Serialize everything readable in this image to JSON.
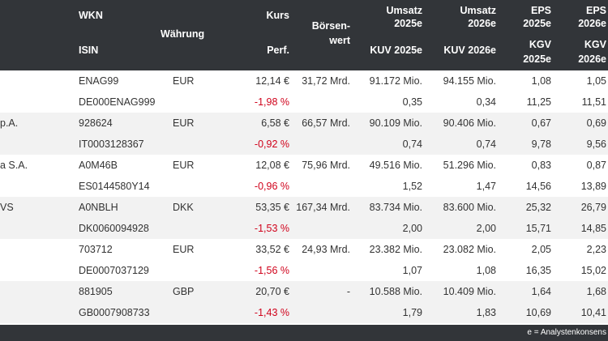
{
  "header": {
    "wkn": "WKN",
    "isin": "ISIN",
    "waehrung": "Währung",
    "kurs": "Kurs",
    "perf": "Perf.",
    "boersenwert_1": "Börsen-",
    "boersenwert_2": "wert",
    "umsatz25_1": "Umsatz",
    "umsatz25_2": "2025e",
    "umsatz26_1": "Umsatz",
    "umsatz26_2": "2026e",
    "kuv25": "KUV 2025e",
    "kuv26": "KUV 2026e",
    "eps25_1": "EPS",
    "eps25_2": "2025e",
    "eps26_1": "EPS",
    "eps26_2": "2026e",
    "kgv25_1": "KGV",
    "kgv25_2": "2025e",
    "kgv26_1": "KGV",
    "kgv26_2": "2026e"
  },
  "rows": [
    {
      "name": "",
      "wkn": "ENAG99",
      "isin": "DE000ENAG999",
      "currency": "EUR",
      "kurs": "12,14 €",
      "perf": "-1,98 %",
      "boersenwert": "31,72 Mrd.",
      "umsatz25": "91.172 Mio.",
      "umsatz26": "94.155 Mio.",
      "kuv25": "0,35",
      "kuv26": "0,34",
      "eps25": "1,08",
      "eps26": "1,05",
      "kgv25": "11,25",
      "kgv26": "11,51"
    },
    {
      "name": "p.A.",
      "wkn": "928624",
      "isin": "IT0003128367",
      "currency": "EUR",
      "kurs": "6,58 €",
      "perf": "-0,92 %",
      "boersenwert": "66,57 Mrd.",
      "umsatz25": "90.109 Mio.",
      "umsatz26": "90.406 Mio.",
      "kuv25": "0,74",
      "kuv26": "0,74",
      "eps25": "0,67",
      "eps26": "0,69",
      "kgv25": "9,78",
      "kgv26": "9,56"
    },
    {
      "name": "a S.A.",
      "wkn": "A0M46B",
      "isin": "ES0144580Y14",
      "currency": "EUR",
      "kurs": "12,08 €",
      "perf": "-0,96 %",
      "boersenwert": "75,96 Mrd.",
      "umsatz25": "49.516 Mio.",
      "umsatz26": "51.296 Mio.",
      "kuv25": "1,52",
      "kuv26": "1,47",
      "eps25": "0,83",
      "eps26": "0,87",
      "kgv25": "14,56",
      "kgv26": "13,89"
    },
    {
      "name": "VS",
      "wkn": "A0NBLH",
      "isin": "DK0060094928",
      "currency": "DKK",
      "kurs": "53,35 €",
      "perf": "-1,53 %",
      "boersenwert": "167,34 Mrd.",
      "umsatz25": "83.734 Mio.",
      "umsatz26": "83.600 Mio.",
      "kuv25": "2,00",
      "kuv26": "2,00",
      "eps25": "25,32",
      "eps26": "26,79",
      "kgv25": "15,71",
      "kgv26": "14,85"
    },
    {
      "name": "",
      "wkn": "703712",
      "isin": "DE0007037129",
      "currency": "EUR",
      "kurs": "33,52 €",
      "perf": "-1,56 %",
      "boersenwert": "24,93 Mrd.",
      "umsatz25": "23.382 Mio.",
      "umsatz26": "23.082 Mio.",
      "kuv25": "1,07",
      "kuv26": "1,08",
      "eps25": "2,05",
      "eps26": "2,23",
      "kgv25": "16,35",
      "kgv26": "15,02"
    },
    {
      "name": "",
      "wkn": "881905",
      "isin": "GB0007908733",
      "currency": "GBP",
      "kurs": "20,70 €",
      "perf": "-1,43 %",
      "boersenwert": "-",
      "umsatz25": "10.588 Mio.",
      "umsatz26": "10.409 Mio.",
      "kuv25": "1,79",
      "kuv26": "1,83",
      "eps25": "1,64",
      "eps26": "1,68",
      "kgv25": "10,69",
      "kgv26": "10,41"
    }
  ],
  "footer": {
    "note": "e = Analystenkonsens"
  }
}
